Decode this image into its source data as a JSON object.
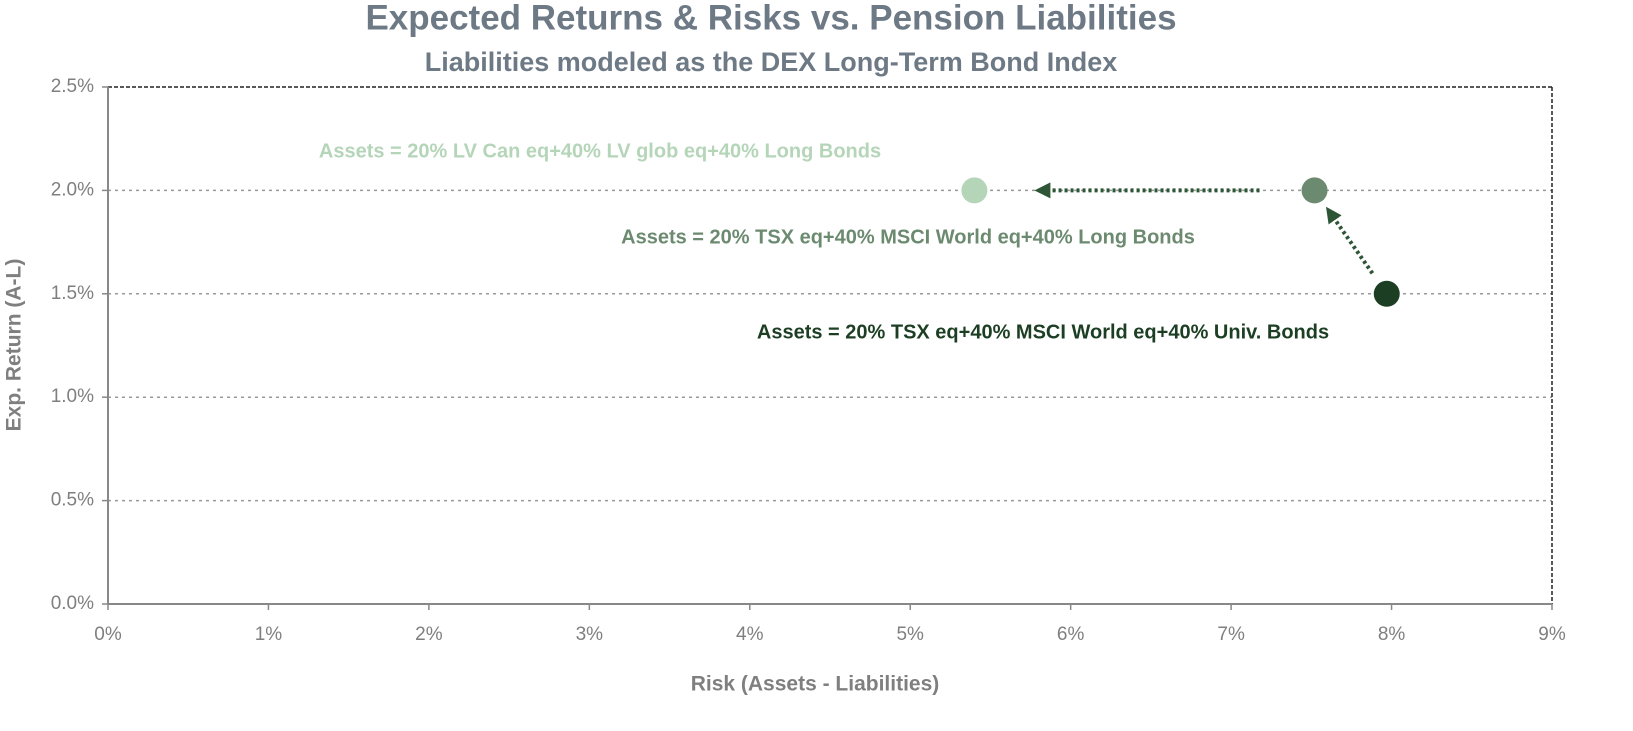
{
  "chart_data": {
    "type": "scatter",
    "title": "Expected Returns & Risks vs. Pension Liabilities",
    "subtitle": "Liabilities modeled as the DEX Long-Term Bond Index",
    "xlabel": "Risk (Assets - Liabilities)",
    "ylabel": "Exp. Return (A-L)",
    "xlim": [
      0,
      9
    ],
    "xticks": [
      {
        "value": 0,
        "label": "0%"
      },
      {
        "value": 1,
        "label": "1%"
      },
      {
        "value": 2,
        "label": "2%"
      },
      {
        "value": 3,
        "label": "3%"
      },
      {
        "value": 4,
        "label": "4%"
      },
      {
        "value": 5,
        "label": "5%"
      },
      {
        "value": 6,
        "label": "6%"
      },
      {
        "value": 7,
        "label": "7%"
      },
      {
        "value": 8,
        "label": "8%"
      },
      {
        "value": 9,
        "label": "9%"
      }
    ],
    "ylim": [
      0,
      2.5
    ],
    "yticks": [
      {
        "value": 0,
        "label": "0.0%"
      },
      {
        "value": 0.5,
        "label": "0.5%"
      },
      {
        "value": 1,
        "label": "1.0%"
      },
      {
        "value": 1.5,
        "label": "1.5%"
      },
      {
        "value": 2,
        "label": "2.0%"
      },
      {
        "value": 2.5,
        "label": "2.5%"
      }
    ],
    "grid": true,
    "series": [
      {
        "name": "Assets = 20% LV Can eq+40% LV glob eq+40% Long Bonds",
        "color": "#b5d5b9",
        "x": [
          5.4
        ],
        "values": [
          2.0
        ]
      },
      {
        "name": "Assets = 20% TSX eq+40% MSCI World eq+40% Long Bonds",
        "color": "#6b8a6f",
        "x": [
          7.52
        ],
        "values": [
          2.0
        ]
      },
      {
        "name": "Assets = 20% TSX eq+40% MSCI World eq+40% Univ. Bonds",
        "color": "#1c3f24",
        "x": [
          7.97
        ],
        "values": [
          1.5
        ]
      }
    ]
  }
}
